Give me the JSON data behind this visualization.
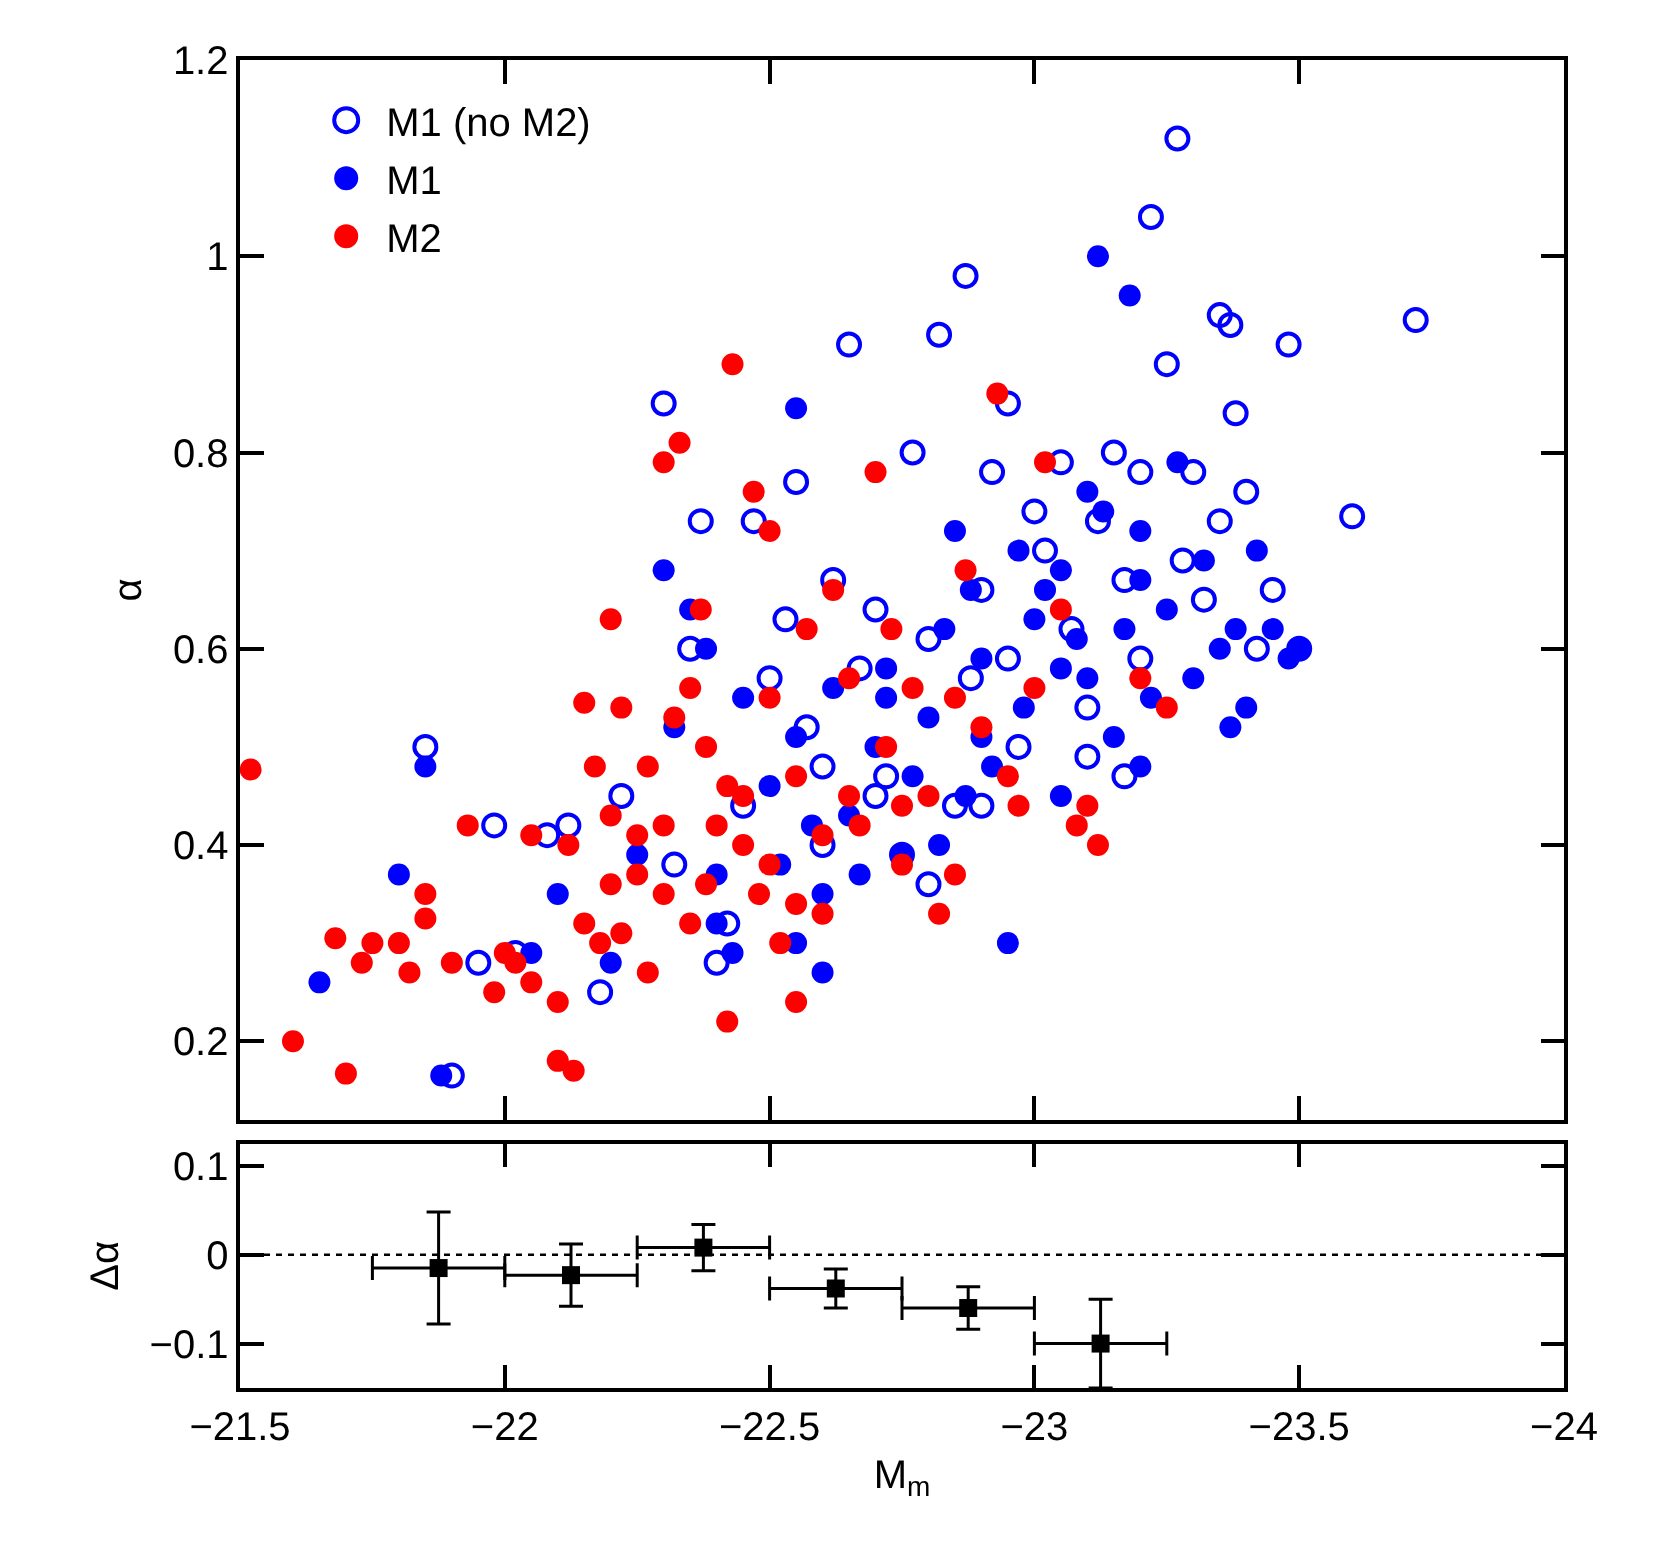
{
  "chart_data": [
    {
      "type": "scatter",
      "ylabel": "α",
      "marker": "circle",
      "legend": "top left",
      "tick_labels": "y",
      "xlim": [
        -21.5,
        -24
      ],
      "ylim": [
        0.12,
        1.2
      ],
      "xticks": [
        -21.5,
        -22,
        -22.5,
        -23,
        -23.5,
        -24
      ],
      "yticks": [
        0.2,
        0.4,
        0.6,
        0.8,
        1,
        1.2
      ],
      "series": [
        {
          "name": "M1 (no M2)",
          "color": "#0000ff",
          "marker": "circle-open",
          "x": [
            -21.85,
            -21.9,
            -21.95,
            -21.98,
            -22.02,
            -22.08,
            -22.12,
            -22.18,
            -22.22,
            -22.3,
            -22.32,
            -22.35,
            -22.37,
            -22.4,
            -22.42,
            -22.45,
            -22.47,
            -22.5,
            -22.53,
            -22.55,
            -22.57,
            -22.6,
            -22.62,
            -22.65,
            -22.67,
            -22.7,
            -22.72,
            -22.75,
            -22.77,
            -22.8,
            -22.82,
            -22.85,
            -22.87,
            -22.88,
            -22.9,
            -22.92,
            -22.95,
            -22.97,
            -23.0,
            -23.02,
            -23.05,
            -23.07,
            -23.1,
            -23.12,
            -23.15,
            -23.17,
            -23.2,
            -23.22,
            -23.25,
            -23.27,
            -23.3,
            -23.32,
            -23.35,
            -23.37,
            -23.38,
            -23.4,
            -23.42,
            -23.45,
            -23.5,
            -23.6,
            -23.72,
            -23.48,
            -23.17,
            -23.1,
            -22.6,
            -22.8,
            -23.2,
            -22.7,
            -22.9,
            -23.35,
            -23.28,
            -22.95
          ],
          "values": [
            0.5,
            0.165,
            0.28,
            0.42,
            0.29,
            0.41,
            0.42,
            0.25,
            0.45,
            0.85,
            0.38,
            0.6,
            0.73,
            0.28,
            0.32,
            0.44,
            0.73,
            0.57,
            0.63,
            0.77,
            0.52,
            0.48,
            0.67,
            0.91,
            0.58,
            0.64,
            0.47,
            0.39,
            0.8,
            0.61,
            0.92,
            0.44,
            0.98,
            0.57,
            0.66,
            0.78,
            0.85,
            0.5,
            0.74,
            0.7,
            0.79,
            0.62,
            0.54,
            0.73,
            0.8,
            0.67,
            0.59,
            1.04,
            0.89,
            1.12,
            0.78,
            0.65,
            0.94,
            0.93,
            0.84,
            0.76,
            0.6,
            0.66,
            0.6,
            0.735,
            0.935,
            0.91,
            0.47,
            0.49,
            0.4,
            0.36,
            0.78,
            0.45,
            0.44,
            0.73,
            0.69,
            0.59
          ]
        },
        {
          "name": "M1",
          "color": "#0000ff",
          "x": [
            -21.65,
            -21.8,
            -21.85,
            -21.88,
            -22.05,
            -22.1,
            -22.2,
            -22.25,
            -22.3,
            -22.32,
            -22.35,
            -22.38,
            -22.4,
            -22.43,
            -22.45,
            -22.5,
            -22.52,
            -22.55,
            -22.55,
            -22.6,
            -22.6,
            -22.62,
            -22.65,
            -22.7,
            -22.72,
            -22.75,
            -22.77,
            -22.8,
            -22.82,
            -22.83,
            -22.85,
            -22.87,
            -22.88,
            -22.9,
            -22.92,
            -22.95,
            -22.97,
            -22.98,
            -23.0,
            -23.02,
            -23.05,
            -23.05,
            -23.08,
            -23.1,
            -23.1,
            -23.12,
            -23.13,
            -23.15,
            -23.17,
            -23.18,
            -23.2,
            -23.2,
            -23.22,
            -23.25,
            -23.27,
            -23.3,
            -23.32,
            -23.35,
            -23.37,
            -23.38,
            -23.4,
            -23.42,
            -23.45,
            -23.48,
            -23.5,
            -22.55,
            -22.72,
            -22.9,
            -23.05,
            -22.67,
            -22.4,
            -23.2,
            -22.58
          ],
          "values": [
            0.26,
            0.37,
            0.48,
            0.165,
            0.29,
            0.35,
            0.28,
            0.39,
            0.68,
            0.52,
            0.64,
            0.6,
            0.37,
            0.29,
            0.55,
            0.46,
            0.38,
            0.3,
            0.51,
            0.27,
            0.35,
            0.56,
            0.43,
            0.5,
            0.58,
            0.39,
            0.47,
            0.53,
            0.4,
            0.62,
            0.72,
            0.45,
            0.66,
            0.59,
            0.48,
            0.3,
            0.7,
            0.54,
            0.63,
            0.66,
            0.68,
            0.58,
            0.61,
            0.57,
            0.76,
            1.0,
            0.74,
            0.51,
            0.62,
            0.96,
            0.67,
            0.48,
            0.55,
            0.64,
            0.79,
            0.57,
            0.69,
            0.6,
            0.52,
            0.62,
            0.54,
            0.7,
            0.62,
            0.59,
            0.6,
            0.845,
            0.55,
            0.51,
            0.45,
            0.37,
            0.32,
            0.72,
            0.42
          ]
        },
        {
          "name": "M2",
          "color": "#ff0000",
          "x": [
            -21.52,
            -21.6,
            -21.68,
            -21.7,
            -21.73,
            -21.75,
            -21.8,
            -21.82,
            -21.85,
            -21.85,
            -21.9,
            -21.93,
            -21.98,
            -22.0,
            -22.02,
            -22.05,
            -22.05,
            -22.1,
            -22.12,
            -22.13,
            -22.15,
            -22.15,
            -22.18,
            -22.2,
            -22.2,
            -22.22,
            -22.25,
            -22.27,
            -22.27,
            -22.3,
            -22.3,
            -22.32,
            -22.33,
            -22.35,
            -22.37,
            -22.38,
            -22.4,
            -22.42,
            -22.42,
            -22.43,
            -22.45,
            -22.47,
            -22.48,
            -22.5,
            -22.5,
            -22.52,
            -22.55,
            -22.55,
            -22.57,
            -22.6,
            -22.62,
            -22.65,
            -22.67,
            -22.7,
            -22.72,
            -22.73,
            -22.75,
            -22.77,
            -22.8,
            -22.82,
            -22.85,
            -22.87,
            -22.9,
            -22.93,
            -22.95,
            -22.97,
            -23.0,
            -23.02,
            -23.05,
            -23.08,
            -23.1,
            -23.12,
            -23.2,
            -23.25,
            -22.38,
            -22.2,
            -22.25,
            -22.6,
            -22.65,
            -22.5,
            -22.35,
            -22.45,
            -22.55,
            -22.75,
            -22.85,
            -22.3,
            -22.17,
            -22.22,
            -22.1
          ],
          "values": [
            0.477,
            0.2,
            0.305,
            0.167,
            0.28,
            0.3,
            0.3,
            0.27,
            0.325,
            0.35,
            0.28,
            0.42,
            0.25,
            0.29,
            0.28,
            0.26,
            0.41,
            0.18,
            0.4,
            0.17,
            0.545,
            0.32,
            0.3,
            0.43,
            0.63,
            0.54,
            0.37,
            0.48,
            0.27,
            0.79,
            0.35,
            0.53,
            0.81,
            0.56,
            0.64,
            0.5,
            0.42,
            0.22,
            0.46,
            0.89,
            0.4,
            0.76,
            0.35,
            0.72,
            0.55,
            0.3,
            0.24,
            0.47,
            0.62,
            0.33,
            0.66,
            0.57,
            0.42,
            0.78,
            0.5,
            0.62,
            0.38,
            0.56,
            0.45,
            0.33,
            0.37,
            0.68,
            0.52,
            0.86,
            0.47,
            0.44,
            0.56,
            0.79,
            0.64,
            0.42,
            0.44,
            0.4,
            0.57,
            0.54,
            0.36,
            0.36,
            0.41,
            0.41,
            0.45,
            0.38,
            0.32,
            0.45,
            0.34,
            0.44,
            0.55,
            0.42,
            0.48,
            0.31,
            0.24
          ]
        }
      ]
    },
    {
      "type": "scatter",
      "xlabel": "M$_{m}$",
      "ylabel": "Δα",
      "marker": "square",
      "legend": false,
      "xlim": [
        -21.5,
        -24
      ],
      "ylim": [
        -0.15,
        0.125
      ],
      "xticks": [
        {
          "value": -21.5,
          "label": "−21.5"
        },
        {
          "value": -22,
          "label": "−22"
        },
        {
          "value": -22.5,
          "label": "−22.5"
        },
        {
          "value": -23,
          "label": "−23"
        },
        {
          "value": -23.5,
          "label": "−23.5"
        },
        {
          "value": -24,
          "label": "−24"
        }
      ],
      "yticks": [
        0.1,
        0,
        {
          "value": -0.1,
          "label": "−0.1"
        }
      ],
      "ref_lines": [
        {
          "axis": "y",
          "value": 0,
          "line_style": "dotted",
          "color": "#000000"
        }
      ],
      "series": [
        {
          "color": "#000000",
          "x": [
            -21.875,
            -22.125,
            -22.375,
            -22.625,
            -22.875,
            -23.125
          ],
          "values": [
            -0.015,
            -0.023,
            0.008,
            -0.038,
            -0.06,
            -0.1
          ],
          "errors": [
            0.063,
            0.035,
            0.026,
            0.022,
            0.024,
            0.05
          ],
          "xerrors": [
            0.125,
            0.125,
            0.125,
            0.125,
            0.125,
            0.125
          ]
        }
      ]
    }
  ]
}
